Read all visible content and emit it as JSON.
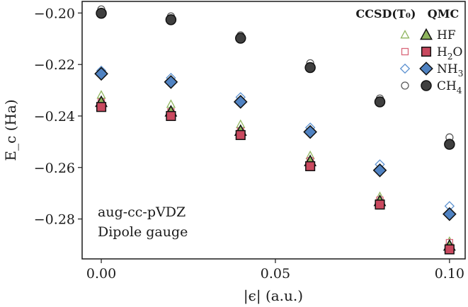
{
  "chart_data": {
    "type": "scatter",
    "xlabel": "|ϵ| (a.u.)",
    "ylabel": "E_c (Ha)",
    "xlim": [
      -0.0055,
      0.1045
    ],
    "ylim": [
      -0.2955,
      -0.1955
    ],
    "xticks": [
      0.0,
      0.05,
      0.1
    ],
    "xtick_labels": [
      "0.00",
      "0.05",
      "0.10"
    ],
    "yticks": [
      -0.2,
      -0.22,
      -0.24,
      -0.26,
      -0.28
    ],
    "ytick_labels": [
      "−0.20",
      "−0.22",
      "−0.24",
      "−0.26",
      "−0.28"
    ],
    "annotations": [
      "aug-cc-pVDZ",
      "Dipole gauge"
    ],
    "legend": {
      "headers": [
        "CCSD(T₀)",
        "QMC"
      ],
      "entries": [
        {
          "label": "HF",
          "sub": ""
        },
        {
          "label": "H",
          "sub": "2",
          "post": "O"
        },
        {
          "label": "NH",
          "sub": "3"
        },
        {
          "label": "CH",
          "sub": "4"
        }
      ]
    },
    "x": [
      0.0,
      0.02,
      0.04,
      0.06,
      0.08,
      0.1
    ],
    "series": [
      {
        "name": "HF",
        "method": "CCSD(T₀)",
        "marker": "triangle",
        "filled": false,
        "color": "#8fb55e",
        "values": [
          -0.2318,
          -0.2354,
          -0.2432,
          -0.2553,
          -0.2712,
          -0.2886
        ]
      },
      {
        "name": "H2O",
        "method": "CCSD(T₀)",
        "marker": "square",
        "filled": false,
        "color": "#d9677a",
        "values": [
          -0.2346,
          -0.2384,
          -0.2459,
          -0.2574,
          -0.2727,
          -0.2892
        ]
      },
      {
        "name": "NH3",
        "method": "CCSD(T₀)",
        "marker": "diamond",
        "filled": false,
        "color": "#5d92d0",
        "values": [
          -0.2224,
          -0.2252,
          -0.2327,
          -0.2445,
          -0.2588,
          -0.275
        ]
      },
      {
        "name": "CH4",
        "method": "CCSD(T₀)",
        "marker": "circle",
        "filled": false,
        "color": "#5a5a5a",
        "values": [
          -0.1986,
          -0.2013,
          -0.2087,
          -0.2195,
          -0.2332,
          -0.2483
        ]
      },
      {
        "name": "HF",
        "method": "QMC",
        "marker": "triangle",
        "filled": true,
        "color": "#8fb55e",
        "values": [
          -0.2345,
          -0.2382,
          -0.2457,
          -0.2575,
          -0.273,
          -0.2903
        ]
      },
      {
        "name": "H2O",
        "method": "QMC",
        "marker": "square",
        "filled": true,
        "color": "#c9495f",
        "values": [
          -0.2365,
          -0.24,
          -0.2474,
          -0.2595,
          -0.2744,
          -0.2918
        ]
      },
      {
        "name": "NH3",
        "method": "QMC",
        "marker": "diamond",
        "filled": true,
        "color": "#4f82c2",
        "values": [
          -0.2236,
          -0.2268,
          -0.2345,
          -0.2462,
          -0.2611,
          -0.2781
        ]
      },
      {
        "name": "CH4",
        "method": "QMC",
        "marker": "circle",
        "filled": true,
        "color": "#3f3f3f",
        "values": [
          -0.2001,
          -0.2026,
          -0.2098,
          -0.2212,
          -0.2345,
          -0.251
        ]
      }
    ]
  }
}
